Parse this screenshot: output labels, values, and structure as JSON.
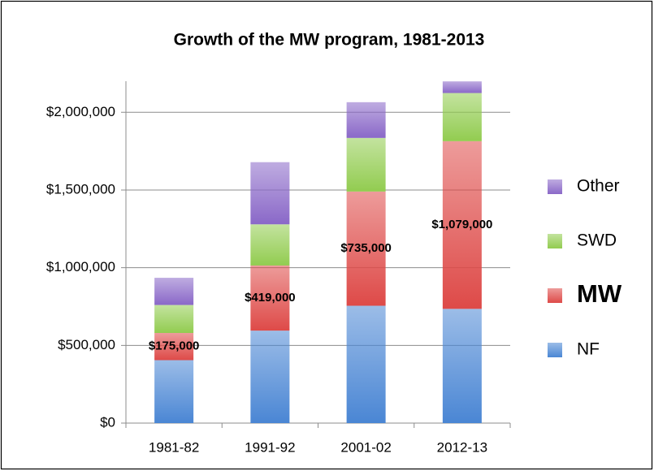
{
  "chart_data": {
    "type": "stacked_bar",
    "title": "Growth of the MW program, 1981-2013",
    "categories": [
      "1981-82",
      "1991-92",
      "2001-02",
      "2012-13"
    ],
    "series": [
      {
        "name": "NF",
        "color": "#4a86d4",
        "values": [
          405000,
          595000,
          755000,
          735000
        ]
      },
      {
        "name": "MW",
        "color": "#de4a48",
        "bold": true,
        "values": [
          175000,
          419000,
          735000,
          1079000
        ],
        "value_labels": [
          "$175,000",
          "$419,000",
          "$735,000",
          "$1,079,000"
        ]
      },
      {
        "name": "SWD",
        "color": "#92cc50",
        "values": [
          180000,
          265000,
          345000,
          310000
        ]
      },
      {
        "name": "Other",
        "color": "#8a68c8",
        "values": [
          175000,
          400000,
          230000,
          75000
        ]
      }
    ],
    "ylim": [
      0,
      2200000
    ],
    "yticks": [
      {
        "value": 0,
        "label": "$0"
      },
      {
        "value": 500000,
        "label": "$500,000"
      },
      {
        "value": 1000000,
        "label": "$1,000,000"
      },
      {
        "value": 1500000,
        "label": "$1,500,000"
      },
      {
        "value": 2000000,
        "label": "$2,000,000"
      }
    ],
    "grid": true,
    "legend": "right"
  }
}
